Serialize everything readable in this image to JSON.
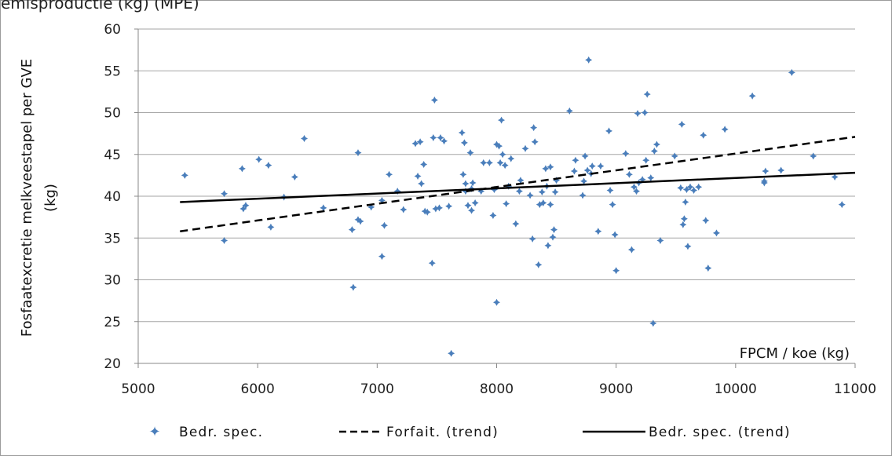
{
  "top_text": "emisproductie (kg) (MPE)",
  "chart_data": {
    "type": "scatter",
    "ylabel_line1": "Fosfaatexcretie melkveestapel per GVE",
    "ylabel_line2": "(kg)",
    "xlabel": "FPCM / koe (kg)",
    "xlim": [
      5000,
      11000
    ],
    "ylim": [
      20,
      60
    ],
    "x_ticks": [
      "5000",
      "6000",
      "7000",
      "8000",
      "9000",
      "10000",
      "11000"
    ],
    "y_ticks": [
      "20",
      "25",
      "30",
      "35",
      "40",
      "45",
      "50",
      "55",
      "60"
    ],
    "grid": "horizontal",
    "legend_position": "bottom",
    "colors": {
      "points": "#4a7ebb",
      "grid": "#a6a6a6",
      "lines": "#000000"
    },
    "series": [
      {
        "name": "Bedr. spec.",
        "kind": "points",
        "points": [
          [
            5390,
            42.5
          ],
          [
            5720,
            40.3
          ],
          [
            5720,
            34.7
          ],
          [
            5870,
            43.3
          ],
          [
            5880,
            38.5
          ],
          [
            5900,
            38.9
          ],
          [
            6010,
            44.4
          ],
          [
            6090,
            43.7
          ],
          [
            6110,
            36.3
          ],
          [
            6220,
            39.9
          ],
          [
            6310,
            42.3
          ],
          [
            6390,
            46.9
          ],
          [
            6550,
            38.6
          ],
          [
            6790,
            36.0
          ],
          [
            6800,
            29.1
          ],
          [
            6840,
            37.2
          ],
          [
            6840,
            45.2
          ],
          [
            6860,
            37.0
          ],
          [
            6950,
            38.7
          ],
          [
            7040,
            39.5
          ],
          [
            7040,
            32.8
          ],
          [
            7060,
            36.5
          ],
          [
            7100,
            42.6
          ],
          [
            7170,
            40.6
          ],
          [
            7220,
            38.4
          ],
          [
            7320,
            46.3
          ],
          [
            7340,
            42.4
          ],
          [
            7360,
            46.5
          ],
          [
            7370,
            41.5
          ],
          [
            7390,
            43.8
          ],
          [
            7400,
            38.2
          ],
          [
            7420,
            38.1
          ],
          [
            7460,
            32.0
          ],
          [
            7470,
            47.0
          ],
          [
            7480,
            51.5
          ],
          [
            7490,
            38.5
          ],
          [
            7520,
            38.6
          ],
          [
            7530,
            47.0
          ],
          [
            7560,
            46.6
          ],
          [
            7600,
            38.8
          ],
          [
            7620,
            21.2
          ],
          [
            7710,
            47.6
          ],
          [
            7720,
            42.6
          ],
          [
            7730,
            46.4
          ],
          [
            7740,
            41.5
          ],
          [
            7740,
            40.6
          ],
          [
            7760,
            38.9
          ],
          [
            7780,
            45.2
          ],
          [
            7790,
            38.3
          ],
          [
            7790,
            40.9
          ],
          [
            7800,
            41.6
          ],
          [
            7820,
            39.2
          ],
          [
            7870,
            40.6
          ],
          [
            7890,
            44.0
          ],
          [
            7940,
            44.0
          ],
          [
            7970,
            37.7
          ],
          [
            7980,
            40.8
          ],
          [
            8000,
            46.2
          ],
          [
            8000,
            27.3
          ],
          [
            8020,
            46.0
          ],
          [
            8030,
            44.0
          ],
          [
            8040,
            49.1
          ],
          [
            8050,
            45.0
          ],
          [
            8070,
            43.7
          ],
          [
            8080,
            39.1
          ],
          [
            8100,
            41.2
          ],
          [
            8120,
            44.5
          ],
          [
            8160,
            36.7
          ],
          [
            8190,
            40.6
          ],
          [
            8200,
            41.9
          ],
          [
            8240,
            45.7
          ],
          [
            8280,
            40.1
          ],
          [
            8300,
            34.9
          ],
          [
            8310,
            48.2
          ],
          [
            8320,
            46.5
          ],
          [
            8350,
            31.8
          ],
          [
            8360,
            39.0
          ],
          [
            8380,
            40.5
          ],
          [
            8390,
            39.2
          ],
          [
            8410,
            43.3
          ],
          [
            8420,
            41.2
          ],
          [
            8430,
            34.1
          ],
          [
            8450,
            39.0
          ],
          [
            8450,
            43.5
          ],
          [
            8470,
            35.1
          ],
          [
            8480,
            36.0
          ],
          [
            8490,
            40.5
          ],
          [
            8500,
            41.9
          ],
          [
            8610,
            50.2
          ],
          [
            8650,
            43.0
          ],
          [
            8660,
            44.3
          ],
          [
            8720,
            40.1
          ],
          [
            8730,
            41.8
          ],
          [
            8740,
            44.8
          ],
          [
            8760,
            43.1
          ],
          [
            8770,
            56.3
          ],
          [
            8790,
            42.7
          ],
          [
            8800,
            43.6
          ],
          [
            8850,
            35.8
          ],
          [
            8870,
            43.6
          ],
          [
            8940,
            47.8
          ],
          [
            8950,
            40.7
          ],
          [
            8970,
            39.0
          ],
          [
            8990,
            35.4
          ],
          [
            9000,
            31.1
          ],
          [
            9080,
            45.1
          ],
          [
            9110,
            42.6
          ],
          [
            9130,
            33.6
          ],
          [
            9150,
            41.1
          ],
          [
            9170,
            40.6
          ],
          [
            9180,
            49.9
          ],
          [
            9190,
            41.6
          ],
          [
            9220,
            42.0
          ],
          [
            9240,
            50.0
          ],
          [
            9250,
            44.3
          ],
          [
            9260,
            52.2
          ],
          [
            9290,
            42.2
          ],
          [
            9310,
            24.8
          ],
          [
            9320,
            45.4
          ],
          [
            9340,
            46.2
          ],
          [
            9370,
            34.7
          ],
          [
            9490,
            44.8
          ],
          [
            9540,
            41.0
          ],
          [
            9550,
            48.6
          ],
          [
            9560,
            36.6
          ],
          [
            9570,
            37.3
          ],
          [
            9580,
            39.3
          ],
          [
            9590,
            40.8
          ],
          [
            9600,
            34.0
          ],
          [
            9620,
            41.1
          ],
          [
            9650,
            40.7
          ],
          [
            9690,
            41.1
          ],
          [
            9730,
            47.3
          ],
          [
            9750,
            37.1
          ],
          [
            9770,
            31.4
          ],
          [
            9840,
            35.6
          ],
          [
            9910,
            48.0
          ],
          [
            10140,
            52.0
          ],
          [
            10240,
            41.8
          ],
          [
            10240,
            41.6
          ],
          [
            10250,
            43.0
          ],
          [
            10380,
            43.1
          ],
          [
            10470,
            54.8
          ],
          [
            10650,
            44.8
          ],
          [
            10830,
            42.3
          ],
          [
            10890,
            39.0
          ]
        ]
      },
      {
        "name": "Forfait. (trend)",
        "kind": "line",
        "dash": "dashed",
        "endpoints": [
          [
            5350,
            35.8
          ],
          [
            11000,
            47.1
          ]
        ]
      },
      {
        "name": "Bedr. spec. (trend)",
        "kind": "line",
        "dash": "solid",
        "endpoints": [
          [
            5350,
            39.3
          ],
          [
            11000,
            42.8
          ]
        ]
      }
    ]
  }
}
